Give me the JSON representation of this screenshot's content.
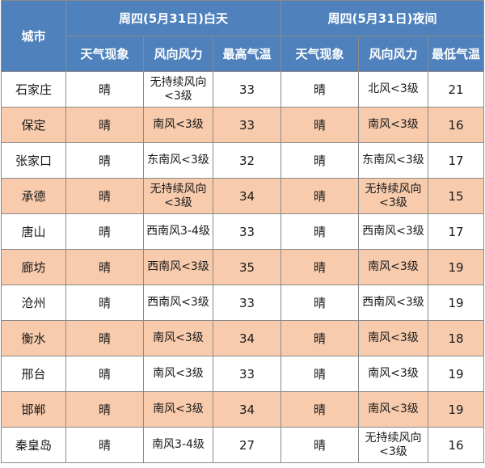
{
  "header": {
    "city_label": "城市",
    "day_title": "周四(5月31日)白天",
    "night_title": "周四(5月31日)夜间",
    "day_cols": [
      "天气现象",
      "风向风力",
      "最高气温"
    ],
    "night_cols": [
      "天气现象",
      "风向风力",
      "最低气温"
    ]
  },
  "rows": [
    {
      "city": "石家庄",
      "day_weather": "晴",
      "day_wind": "无持续风向<3级",
      "high": "33",
      "night_weather": "晴",
      "night_wind": "北风<3级",
      "low": "21"
    },
    {
      "city": "保定",
      "day_weather": "晴",
      "day_wind": "南风<3级",
      "high": "33",
      "night_weather": "晴",
      "night_wind": "南风<3级",
      "low": "16"
    },
    {
      "city": "张家口",
      "day_weather": "晴",
      "day_wind": "东南风<3级",
      "high": "32",
      "night_weather": "晴",
      "night_wind": "东南风<3级",
      "low": "17"
    },
    {
      "city": "承德",
      "day_weather": "晴",
      "day_wind": "无持续风向<3级",
      "high": "34",
      "night_weather": "晴",
      "night_wind": "无持续风向<3级",
      "low": "15"
    },
    {
      "city": "唐山",
      "day_weather": "晴",
      "day_wind": "西南风3-4级",
      "high": "33",
      "night_weather": "晴",
      "night_wind": "西南风<3级",
      "low": "17"
    },
    {
      "city": "廊坊",
      "day_weather": "晴",
      "day_wind": "西南风<3级",
      "high": "35",
      "night_weather": "晴",
      "night_wind": "南风<3级",
      "low": "19"
    },
    {
      "city": "沧州",
      "day_weather": "晴",
      "day_wind": "西南风<3级",
      "high": "33",
      "night_weather": "晴",
      "night_wind": "西南风<3级",
      "low": "19"
    },
    {
      "city": "衡水",
      "day_weather": "晴",
      "day_wind": "南风<3级",
      "high": "34",
      "night_weather": "晴",
      "night_wind": "南风<3级",
      "low": "18"
    },
    {
      "city": "邢台",
      "day_weather": "晴",
      "day_wind": "南风<3级",
      "high": "33",
      "night_weather": "晴",
      "night_wind": "南风<3级",
      "low": "19"
    },
    {
      "city": "邯郸",
      "day_weather": "晴",
      "day_wind": "南风<3级",
      "high": "34",
      "night_weather": "晴",
      "night_wind": "南风<3级",
      "low": "19"
    },
    {
      "city": "秦皇岛",
      "day_weather": "晴",
      "day_wind": "南风3-4级",
      "high": "27",
      "night_weather": "晴",
      "night_wind": "无持续风向<3级",
      "low": "16"
    }
  ],
  "colors": {
    "header_bg": "#4f81bd",
    "stripe": "#f8cbad"
  }
}
